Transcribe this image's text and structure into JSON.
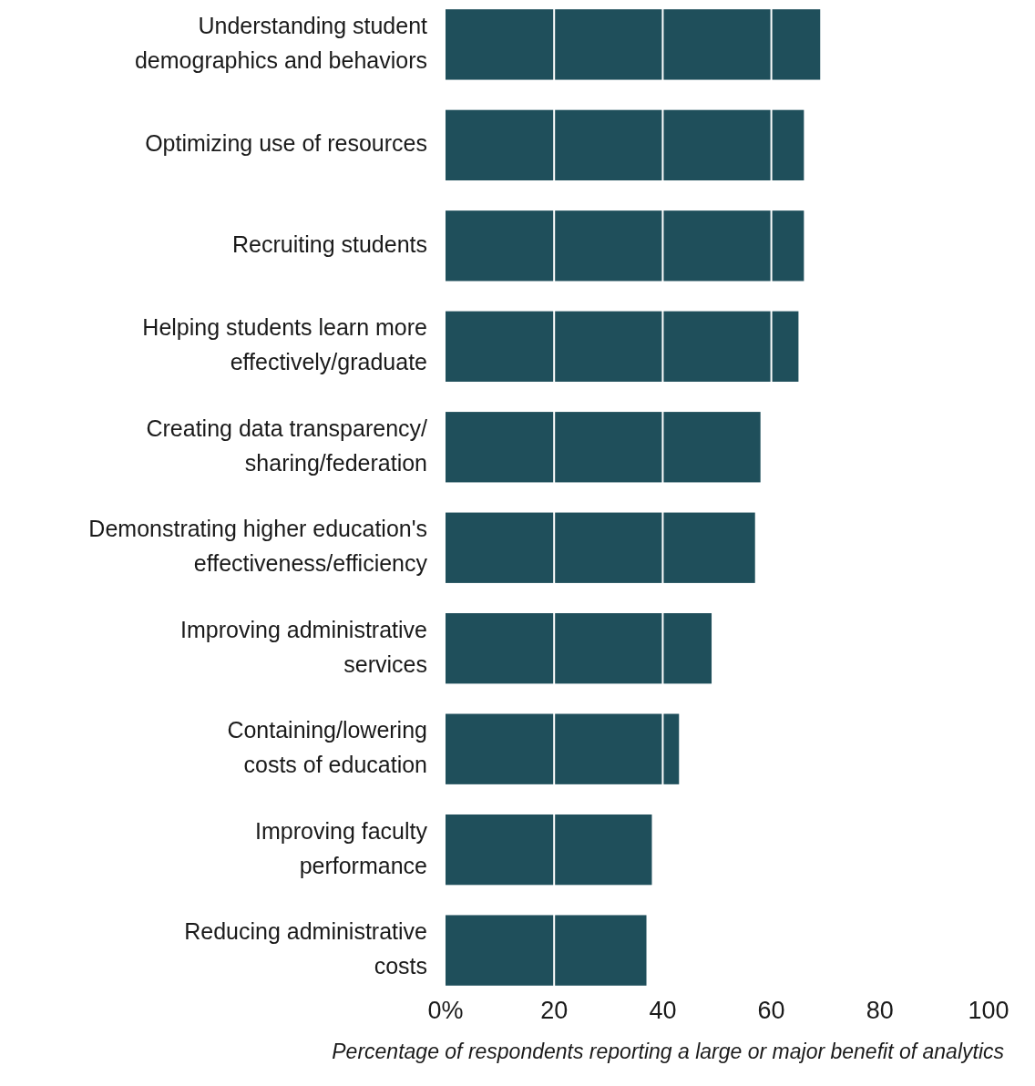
{
  "chart_data": {
    "type": "bar",
    "orientation": "horizontal",
    "xlabel": "Percentage of respondents reporting a large or major benefit of analytics",
    "categories": [
      "Understanding student\ndemographics and behaviors",
      "Optimizing use of resources",
      "Recruiting students",
      "Helping students learn more\neffectively/graduate",
      "Creating data transparency/\nsharing/federation",
      "Demonstrating higher education's\neffectiveness/efficiency",
      "Improving administrative\nservices",
      "Containing/lowering\ncosts of education",
      "Improving faculty\nperformance",
      "Reducing administrative\ncosts"
    ],
    "values": [
      69,
      66,
      66,
      65,
      58,
      57,
      49,
      43,
      38,
      37
    ],
    "color": "#1f4f5b",
    "xlim": [
      0,
      100
    ],
    "xticks": [
      {
        "value": 0,
        "label": "0%"
      },
      20,
      40,
      60,
      80,
      {
        "value": 100,
        "label": "100"
      }
    ],
    "grid": "x"
  }
}
